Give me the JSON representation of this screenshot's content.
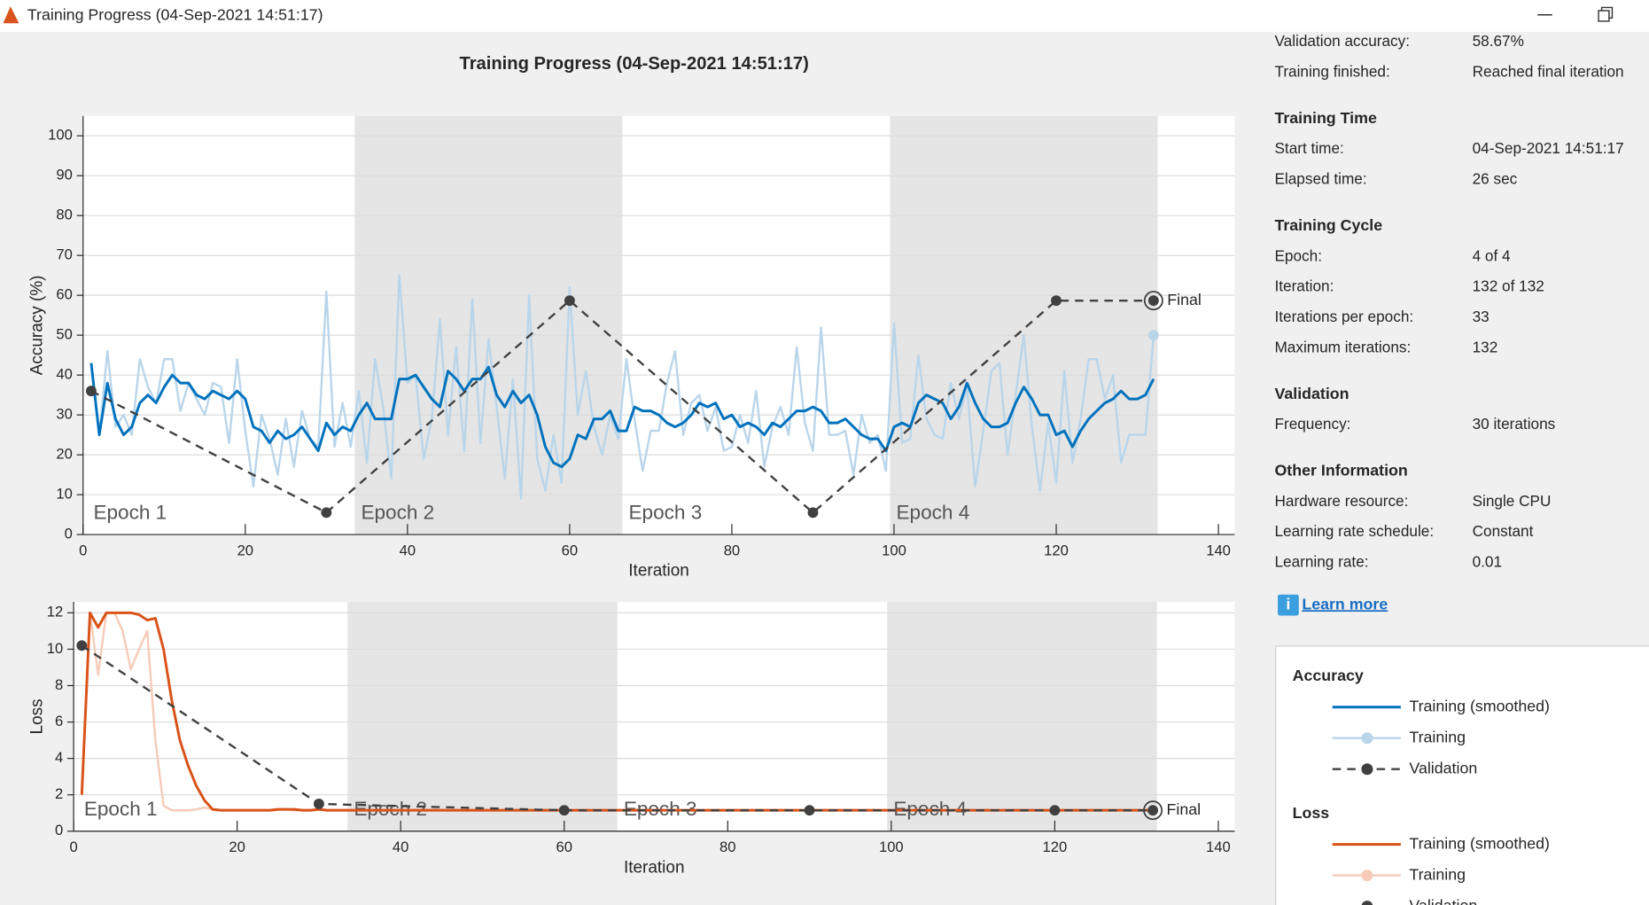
{
  "window_title": "Training Progress (04-Sep-2021 14:51:17)",
  "chart_title": "Training Progress (04-Sep-2021 14:51:17)",
  "chart_data": [
    {
      "type": "line",
      "legend_title": "Accuracy",
      "xlabel": "Iteration",
      "ylabel": "Accuracy (%)",
      "xlim": [
        0,
        142
      ],
      "ylim": [
        0,
        105
      ],
      "xticks": [
        0,
        20,
        40,
        60,
        80,
        100,
        120,
        140
      ],
      "yticks": [
        0,
        10,
        20,
        30,
        40,
        50,
        60,
        70,
        80,
        90,
        100
      ],
      "grid": true,
      "epochs": [
        {
          "label": "Epoch 1",
          "start": 0.5,
          "end": 33.5,
          "shaded": false
        },
        {
          "label": "Epoch 2",
          "start": 33.5,
          "end": 66.5,
          "shaded": true
        },
        {
          "label": "Epoch 3",
          "start": 66.5,
          "end": 99.5,
          "shaded": false
        },
        {
          "label": "Epoch 4",
          "start": 99.5,
          "end": 132.5,
          "shaded": true
        }
      ],
      "x": [
        1,
        2,
        3,
        4,
        5,
        6,
        7,
        8,
        9,
        10,
        11,
        12,
        13,
        14,
        15,
        16,
        17,
        18,
        19,
        20,
        21,
        22,
        23,
        24,
        25,
        26,
        27,
        28,
        29,
        30,
        31,
        32,
        33,
        34,
        35,
        36,
        37,
        38,
        39,
        40,
        41,
        42,
        43,
        44,
        45,
        46,
        47,
        48,
        49,
        50,
        51,
        52,
        53,
        54,
        55,
        56,
        57,
        58,
        59,
        60,
        61,
        62,
        63,
        64,
        65,
        66,
        67,
        68,
        69,
        70,
        71,
        72,
        73,
        74,
        75,
        76,
        77,
        78,
        79,
        80,
        81,
        82,
        83,
        84,
        85,
        86,
        87,
        88,
        89,
        90,
        91,
        92,
        93,
        94,
        95,
        96,
        97,
        98,
        99,
        100,
        101,
        102,
        103,
        104,
        105,
        106,
        107,
        108,
        109,
        110,
        111,
        112,
        113,
        114,
        115,
        116,
        117,
        118,
        119,
        120,
        121,
        122,
        123,
        124,
        125,
        126,
        127,
        128,
        129,
        130,
        131,
        132
      ],
      "series": [
        {
          "name": "Training",
          "color": "#b9d5ea",
          "width": 2,
          "marker": "last",
          "values": [
            43,
            25,
            46,
            27,
            30,
            25,
            44,
            37,
            33,
            44,
            44,
            31,
            38,
            34,
            30,
            38,
            37,
            23,
            44,
            26,
            12,
            30,
            24,
            15,
            29,
            17,
            31,
            24,
            22,
            61,
            22,
            33,
            22,
            36,
            18,
            44,
            32,
            14,
            65,
            38,
            40,
            19,
            29,
            54,
            25,
            47,
            21,
            59,
            23,
            49,
            32,
            14,
            39,
            9,
            60,
            19,
            11,
            25,
            13,
            62,
            30,
            41,
            27,
            20,
            30,
            24,
            44,
            29,
            16,
            26,
            26,
            38,
            46,
            25,
            33,
            35,
            26,
            32,
            21,
            22,
            30,
            23,
            36,
            17,
            27,
            32,
            25,
            47,
            28,
            21,
            52,
            25,
            25,
            26,
            15,
            30,
            23,
            25,
            16,
            53,
            23,
            24,
            45,
            29,
            25,
            24,
            38,
            29,
            37,
            12,
            26,
            41,
            43,
            20,
            35,
            50,
            27,
            11,
            28,
            13,
            41,
            18,
            29,
            44,
            44,
            34,
            40,
            18,
            25,
            25,
            25,
            50
          ]
        },
        {
          "name": "Training (smoothed)",
          "color": "#0072bd",
          "width": 2.5,
          "marker": "none",
          "values": [
            43,
            25,
            38,
            29,
            25,
            27,
            33,
            35,
            33,
            37,
            40,
            38,
            38,
            35,
            34,
            36,
            35,
            34,
            36,
            34,
            27,
            26,
            23,
            26,
            24,
            25,
            27,
            24,
            21,
            28,
            25,
            27,
            26,
            30,
            33,
            29,
            29,
            29,
            39,
            39,
            40,
            37,
            34,
            32,
            41,
            39,
            36,
            39,
            39,
            42,
            35,
            32,
            36,
            33,
            35,
            30,
            22,
            18,
            17,
            19,
            25,
            24,
            29,
            29,
            31,
            26,
            26,
            32,
            31,
            31,
            30,
            28,
            27,
            28,
            30,
            33,
            32,
            33,
            29,
            30,
            27,
            28,
            27,
            25,
            28,
            27,
            29,
            31,
            31,
            32,
            31,
            28,
            28,
            29,
            27,
            25,
            24,
            24,
            21,
            27,
            28,
            27,
            33,
            35,
            34,
            33,
            29,
            32,
            38,
            33,
            29,
            27,
            27,
            28,
            33,
            37,
            34,
            30,
            30,
            25,
            26,
            22,
            26,
            29,
            31,
            33,
            34,
            36,
            34,
            34,
            35,
            39
          ]
        },
        {
          "name": "Validation",
          "color": "#404040",
          "width": 2,
          "dashed": true,
          "marker": "all",
          "x": [
            1,
            30,
            60,
            90,
            120,
            132
          ],
          "values": [
            36,
            5.5,
            58.67,
            5.5,
            58.67,
            58.67
          ]
        }
      ],
      "annotation": "Final"
    },
    {
      "type": "line",
      "legend_title": "Loss",
      "xlabel": "Iteration",
      "ylabel": "Loss",
      "xlim": [
        0,
        142
      ],
      "ylim": [
        0,
        12.6
      ],
      "xticks": [
        0,
        20,
        40,
        60,
        80,
        100,
        120,
        140
      ],
      "yticks": [
        0,
        2,
        4,
        6,
        8,
        10,
        12
      ],
      "grid": true,
      "epochs": [
        {
          "label": "Epoch 1",
          "start": 0.5,
          "end": 33.5,
          "shaded": false
        },
        {
          "label": "Epoch 2",
          "start": 33.5,
          "end": 66.5,
          "shaded": true
        },
        {
          "label": "Epoch 3",
          "start": 66.5,
          "end": 99.5,
          "shaded": false
        },
        {
          "label": "Epoch 4",
          "start": 99.5,
          "end": 132.5,
          "shaded": true
        }
      ],
      "x": [
        1,
        2,
        3,
        4,
        5,
        6,
        7,
        8,
        9,
        10,
        11,
        12,
        13,
        14,
        15,
        16,
        17,
        18,
        19,
        20,
        21,
        22,
        23,
        24,
        25,
        26,
        27,
        28,
        29,
        30,
        31,
        32,
        33,
        34,
        35,
        36,
        37,
        38,
        39,
        40,
        41,
        42,
        43,
        44,
        45,
        46,
        47,
        48,
        49,
        50,
        51,
        52,
        53,
        54,
        55,
        56,
        57,
        58,
        59,
        60,
        61,
        62,
        63,
        64,
        65,
        66,
        67,
        68,
        69,
        70,
        71,
        72,
        73,
        74,
        75,
        76,
        77,
        78,
        79,
        80,
        81,
        82,
        83,
        84,
        85,
        86,
        87,
        88,
        89,
        90,
        91,
        92,
        93,
        94,
        95,
        96,
        97,
        98,
        99,
        100,
        101,
        102,
        103,
        104,
        105,
        106,
        107,
        108,
        109,
        110,
        111,
        112,
        113,
        114,
        115,
        116,
        117,
        118,
        119,
        120,
        121,
        122,
        123,
        124,
        125,
        126,
        127,
        128,
        129,
        130,
        131,
        132
      ],
      "series": [
        {
          "name": "Training",
          "color": "#f6cbb7",
          "width": 2,
          "marker": "last",
          "values": [
            2,
            12,
            8.6,
            12,
            12,
            11,
            8.9,
            10,
            11,
            5,
            1.4,
            1.15,
            1.15,
            1.15,
            1.2,
            1.3,
            1.2,
            1.15,
            1.15,
            1.15,
            1.15,
            1.15,
            1.15,
            1.15,
            1.2,
            1.2,
            1.15,
            1.15,
            1.15,
            1.2,
            1.15,
            1.15,
            1.15,
            1.15,
            1.15,
            1.15,
            1.15,
            1.15,
            1.15,
            1.15,
            1.15,
            1.15,
            1.15,
            1.15,
            1.15,
            1.15,
            1.15,
            1.15,
            1.15,
            1.15,
            1.15,
            1.15,
            1.15,
            1.15,
            1.15,
            1.15,
            1.15,
            1.15,
            1.15,
            1.15,
            1.15,
            1.15,
            1.15,
            1.15,
            1.15,
            1.15,
            1.15,
            1.15,
            1.15,
            1.15,
            1.15,
            1.15,
            1.15,
            1.15,
            1.15,
            1.15,
            1.15,
            1.15,
            1.15,
            1.15,
            1.15,
            1.15,
            1.15,
            1.15,
            1.15,
            1.15,
            1.15,
            1.15,
            1.15,
            1.15,
            1.15,
            1.15,
            1.15,
            1.15,
            1.15,
            1.15,
            1.15,
            1.15,
            1.15,
            1.15,
            1.15,
            1.15,
            1.15,
            1.15,
            1.15,
            1.15,
            1.15,
            1.15,
            1.15,
            1.15,
            1.15,
            1.15,
            1.15,
            1.15,
            1.15,
            1.15,
            1.15,
            1.15,
            1.15,
            1.15,
            1.15,
            1.15,
            1.15,
            1.15,
            1.15,
            1.15,
            1.15,
            1.15,
            1.15,
            1.15,
            1.15,
            1.15
          ]
        },
        {
          "name": "Training (smoothed)",
          "color": "#d95319",
          "width": 2.5,
          "marker": "none",
          "values": [
            2,
            12,
            11.2,
            12,
            12,
            12,
            12,
            11.9,
            11.6,
            11.7,
            10,
            7.2,
            5,
            3.6,
            2.5,
            1.7,
            1.2,
            1.15,
            1.15,
            1.15,
            1.15,
            1.15,
            1.15,
            1.15,
            1.2,
            1.2,
            1.2,
            1.15,
            1.15,
            1.2,
            1.15,
            1.15,
            1.15,
            1.15,
            1.15,
            1.15,
            1.15,
            1.15,
            1.15,
            1.15,
            1.15,
            1.15,
            1.15,
            1.15,
            1.15,
            1.15,
            1.15,
            1.15,
            1.15,
            1.15,
            1.15,
            1.15,
            1.15,
            1.15,
            1.15,
            1.15,
            1.15,
            1.15,
            1.15,
            1.15,
            1.15,
            1.15,
            1.15,
            1.15,
            1.15,
            1.15,
            1.15,
            1.15,
            1.15,
            1.15,
            1.15,
            1.15,
            1.15,
            1.15,
            1.15,
            1.15,
            1.15,
            1.15,
            1.15,
            1.15,
            1.15,
            1.15,
            1.15,
            1.15,
            1.15,
            1.15,
            1.15,
            1.15,
            1.15,
            1.15,
            1.15,
            1.15,
            1.15,
            1.15,
            1.15,
            1.15,
            1.15,
            1.15,
            1.15,
            1.15,
            1.15,
            1.15,
            1.15,
            1.15,
            1.15,
            1.15,
            1.15,
            1.15,
            1.15,
            1.15,
            1.15,
            1.15,
            1.15,
            1.15,
            1.15,
            1.15,
            1.15,
            1.15,
            1.15,
            1.15,
            1.15,
            1.15,
            1.15,
            1.15,
            1.15,
            1.15,
            1.15,
            1.15,
            1.15,
            1.15,
            1.15,
            1.15
          ]
        },
        {
          "name": "Validation",
          "color": "#404040",
          "width": 2,
          "dashed": true,
          "marker": "all",
          "x": [
            1,
            30,
            60,
            90,
            120,
            132
          ],
          "values": [
            10.2,
            1.5,
            1.15,
            1.15,
            1.15,
            1.15
          ]
        }
      ],
      "annotation": "Final"
    }
  ],
  "info_panel": {
    "top_rows": [
      {
        "label": "Validation accuracy:",
        "value": "58.67%"
      },
      {
        "label": "Training finished:",
        "value": "Reached final iteration"
      }
    ],
    "sections": [
      {
        "heading": "Training Time",
        "rows": [
          {
            "label": "Start time:",
            "value": "04-Sep-2021 14:51:17"
          },
          {
            "label": "Elapsed time:",
            "value": "26 sec"
          }
        ]
      },
      {
        "heading": "Training Cycle",
        "rows": [
          {
            "label": "Epoch:",
            "value": "4 of 4"
          },
          {
            "label": "Iteration:",
            "value": "132 of 132"
          },
          {
            "label": "Iterations per epoch:",
            "value": "33"
          },
          {
            "label": "Maximum iterations:",
            "value": "132"
          }
        ]
      },
      {
        "heading": "Validation",
        "rows": [
          {
            "label": "Frequency:",
            "value": "30 iterations"
          }
        ]
      },
      {
        "heading": "Other Information",
        "rows": [
          {
            "label": "Hardware resource:",
            "value": "Single CPU"
          },
          {
            "label": "Learning rate schedule:",
            "value": "Constant"
          },
          {
            "label": "Learning rate:",
            "value": "0.01"
          }
        ]
      }
    ],
    "learn_more": "Learn more"
  }
}
